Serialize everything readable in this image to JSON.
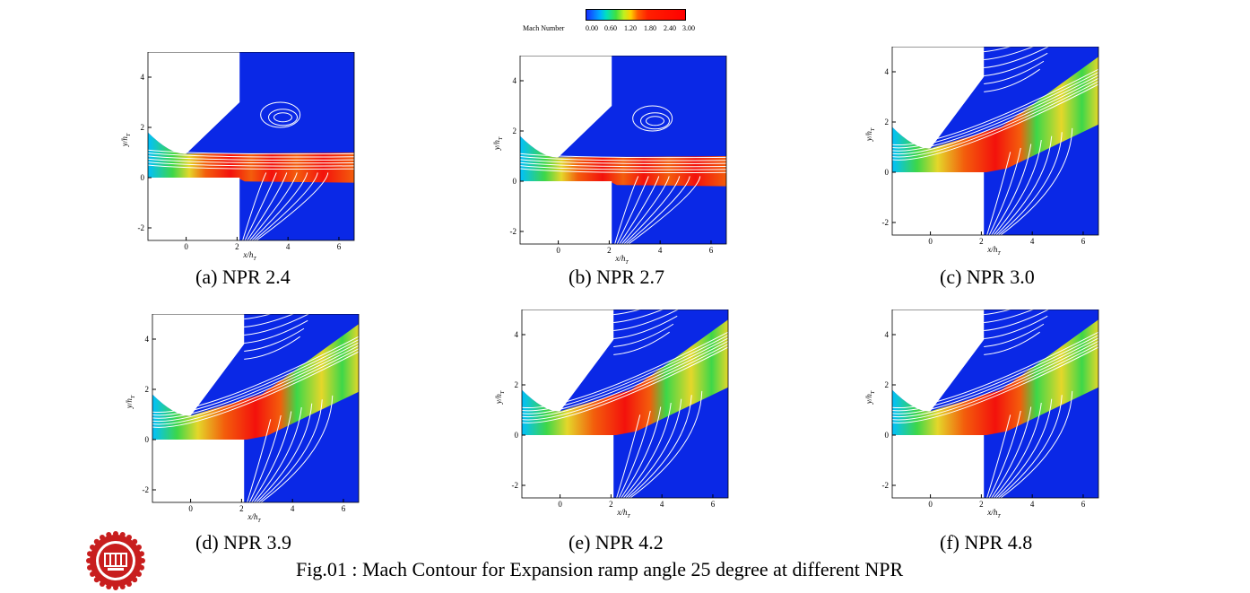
{
  "legend": {
    "title": "Mach Number",
    "ticks": [
      "0.00",
      "0.60",
      "1.20",
      "1.80",
      "2.40",
      "3.00"
    ]
  },
  "axes": {
    "ylabel": "y/h",
    "ylabel_sub": "T",
    "xlabel": "x/h",
    "xlabel_sub": "T",
    "xticks": [
      "0",
      "2",
      "4",
      "6"
    ],
    "yticks": [
      "4",
      "2",
      "0",
      "-2"
    ]
  },
  "panels": [
    {
      "caption": "(a) NPR 2.4",
      "npr": 2.4,
      "regime": "separated-parallel"
    },
    {
      "caption": "(b) NPR 2.7",
      "npr": 2.7,
      "regime": "separated-parallel"
    },
    {
      "caption": "(c) NPR 3.0",
      "npr": 3.0,
      "regime": "attached-ramp"
    },
    {
      "caption": "(d) NPR 3.9",
      "npr": 3.9,
      "regime": "attached-ramp"
    },
    {
      "caption": "(e) NPR 4.2",
      "npr": 4.2,
      "regime": "attached-ramp"
    },
    {
      "caption": "(f) NPR 4.8",
      "npr": 4.8,
      "regime": "attached-ramp"
    }
  ],
  "figure_caption": "Fig.01 : Mach Contour for Expansion ramp angle 25 degree at different NPR",
  "colors": {
    "background_flow": "#0a28e6",
    "subsonic": "#00c8ff",
    "transonic": "#40e040",
    "yellow": "#f0e020",
    "supersonic": "#ff6000",
    "peak": "#ff1000",
    "wall": "#ffffff",
    "logo": "#c81e1e"
  }
}
